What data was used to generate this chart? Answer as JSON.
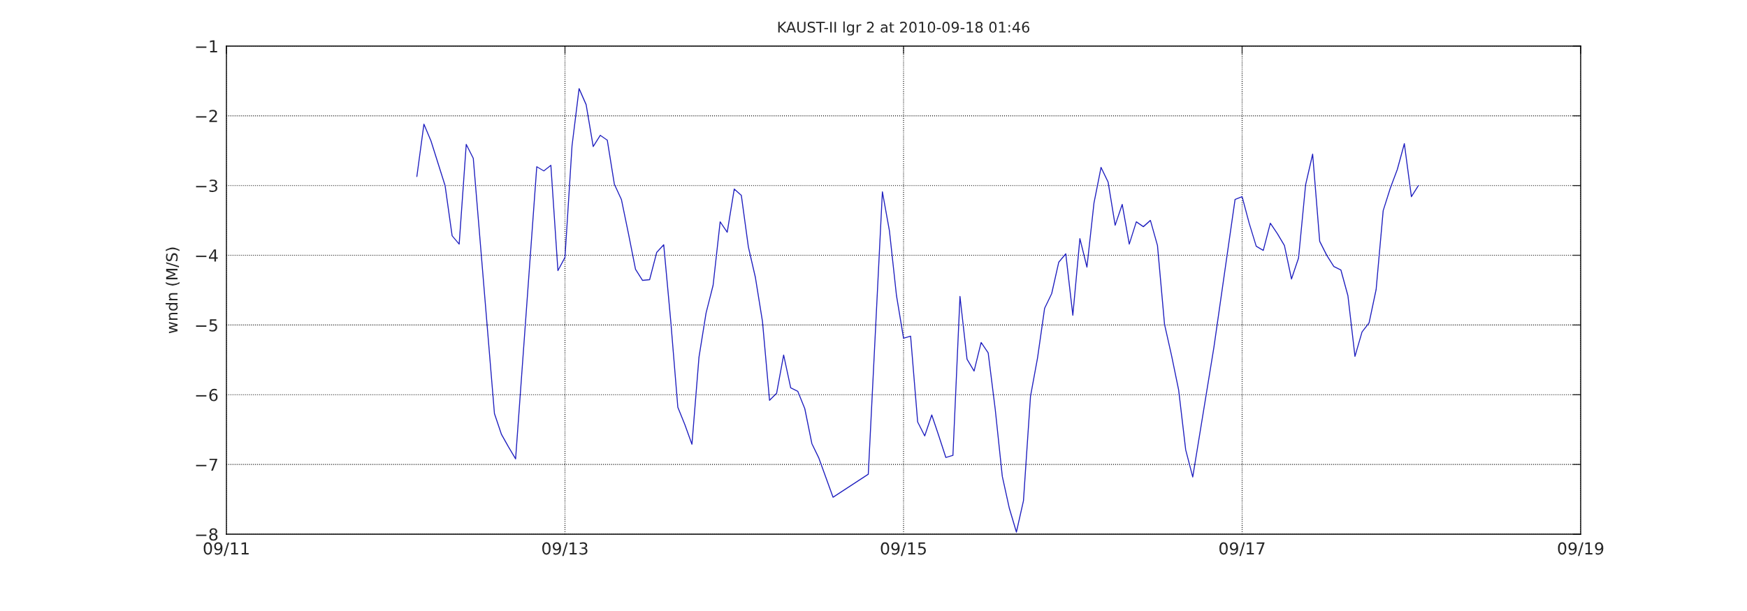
{
  "chart_data": {
    "type": "line",
    "title": "KAUST-II lgr 2 at 2010-09-18 01:46",
    "ylabel": "wndn (M/S)",
    "x": [
      "2010-09-12T03:00",
      "2010-09-12T04:00",
      "2010-09-12T05:00",
      "2010-09-12T06:00",
      "2010-09-12T07:00",
      "2010-09-12T08:00",
      "2010-09-12T09:00",
      "2010-09-12T10:00",
      "2010-09-12T11:00",
      "2010-09-12T14:00",
      "2010-09-12T15:00",
      "2010-09-12T16:00",
      "2010-09-12T17:00",
      "2010-09-12T20:00",
      "2010-09-12T21:00",
      "2010-09-12T22:00",
      "2010-09-12T23:00",
      "2010-09-13T00:00",
      "2010-09-13T01:00",
      "2010-09-13T02:00",
      "2010-09-13T03:00",
      "2010-09-13T04:00",
      "2010-09-13T05:00",
      "2010-09-13T06:00",
      "2010-09-13T07:00",
      "2010-09-13T08:00",
      "2010-09-13T09:00",
      "2010-09-13T10:00",
      "2010-09-13T11:00",
      "2010-09-13T12:00",
      "2010-09-13T13:00",
      "2010-09-13T14:00",
      "2010-09-13T15:00",
      "2010-09-13T16:00",
      "2010-09-13T17:00",
      "2010-09-13T18:00",
      "2010-09-13T19:00",
      "2010-09-13T20:00",
      "2010-09-13T21:00",
      "2010-09-13T22:00",
      "2010-09-13T23:00",
      "2010-09-14T00:00",
      "2010-09-14T01:00",
      "2010-09-14T02:00",
      "2010-09-14T03:00",
      "2010-09-14T04:00",
      "2010-09-14T05:00",
      "2010-09-14T06:00",
      "2010-09-14T07:00",
      "2010-09-14T08:00",
      "2010-09-14T09:00",
      "2010-09-14T10:00",
      "2010-09-14T11:00",
      "2010-09-14T12:00",
      "2010-09-14T14:00",
      "2010-09-14T19:00",
      "2010-09-14T21:00",
      "2010-09-14T22:00",
      "2010-09-14T23:00",
      "2010-09-15T00:00",
      "2010-09-15T01:00",
      "2010-09-15T02:00",
      "2010-09-15T03:00",
      "2010-09-15T04:00",
      "2010-09-15T05:00",
      "2010-09-15T06:00",
      "2010-09-15T07:00",
      "2010-09-15T08:00",
      "2010-09-15T09:00",
      "2010-09-15T10:00",
      "2010-09-15T11:00",
      "2010-09-15T12:00",
      "2010-09-15T13:00",
      "2010-09-15T14:00",
      "2010-09-15T15:00",
      "2010-09-15T16:00",
      "2010-09-15T17:00",
      "2010-09-15T18:00",
      "2010-09-15T19:00",
      "2010-09-15T20:00",
      "2010-09-15T21:00",
      "2010-09-15T22:00",
      "2010-09-15T23:00",
      "2010-09-16T00:00",
      "2010-09-16T01:00",
      "2010-09-16T02:00",
      "2010-09-16T03:00",
      "2010-09-16T04:00",
      "2010-09-16T05:00",
      "2010-09-16T06:00",
      "2010-09-16T07:00",
      "2010-09-16T08:00",
      "2010-09-16T09:00",
      "2010-09-16T10:00",
      "2010-09-16T11:00",
      "2010-09-16T12:00",
      "2010-09-16T13:00",
      "2010-09-16T14:00",
      "2010-09-16T15:00",
      "2010-09-16T16:00",
      "2010-09-16T17:00",
      "2010-09-16T20:00",
      "2010-09-16T23:00",
      "2010-09-17T00:00",
      "2010-09-17T01:00",
      "2010-09-17T02:00",
      "2010-09-17T03:00",
      "2010-09-17T04:00",
      "2010-09-17T05:00",
      "2010-09-17T06:00",
      "2010-09-17T07:00",
      "2010-09-17T08:00",
      "2010-09-17T09:00",
      "2010-09-17T10:00",
      "2010-09-17T11:00",
      "2010-09-17T12:00",
      "2010-09-17T13:00",
      "2010-09-17T14:00",
      "2010-09-17T15:00",
      "2010-09-17T16:00",
      "2010-09-17T17:00",
      "2010-09-17T18:00",
      "2010-09-17T19:00",
      "2010-09-17T20:00",
      "2010-09-17T21:00",
      "2010-09-17T22:00",
      "2010-09-17T23:00",
      "2010-09-18T00:00",
      "2010-09-18T01:00"
    ],
    "series": [
      {
        "color": "#1f1fbf",
        "values": [
          -2.87,
          -2.12,
          -2.36,
          -2.68,
          -3.0,
          -3.72,
          -3.84,
          -2.41,
          -2.61,
          -6.27,
          -6.57,
          -6.75,
          -6.92,
          -2.73,
          -2.79,
          -2.71,
          -4.22,
          -4.03,
          -2.43,
          -1.61,
          -1.84,
          -2.44,
          -2.28,
          -2.35,
          -2.98,
          -3.2,
          -3.69,
          -4.2,
          -4.36,
          -4.35,
          -3.96,
          -3.85,
          -4.95,
          -6.18,
          -6.43,
          -6.71,
          -5.46,
          -4.83,
          -4.43,
          -3.52,
          -3.67,
          -3.05,
          -3.14,
          -3.88,
          -4.32,
          -4.95,
          -6.08,
          -5.98,
          -5.43,
          -5.9,
          -5.95,
          -6.2,
          -6.7,
          -6.91,
          -7.47,
          -7.14,
          -3.09,
          -3.65,
          -4.58,
          -5.19,
          -5.16,
          -6.39,
          -6.59,
          -6.29,
          -6.59,
          -6.9,
          -6.87,
          -4.59,
          -5.49,
          -5.66,
          -5.25,
          -5.4,
          -6.21,
          -7.17,
          -7.63,
          -7.97,
          -7.52,
          -6.02,
          -5.47,
          -4.76,
          -4.55,
          -4.1,
          -3.98,
          -4.86,
          -3.76,
          -4.17,
          -3.25,
          -2.74,
          -2.95,
          -3.57,
          -3.27,
          -3.84,
          -3.52,
          -3.59,
          -3.5,
          -3.86,
          -4.99,
          -5.44,
          -5.93,
          -6.79,
          -7.18,
          -5.32,
          -3.2,
          -3.16,
          -3.54,
          -3.87,
          -3.93,
          -3.54,
          -3.69,
          -3.86,
          -4.34,
          -4.04,
          -2.99,
          -2.55,
          -3.8,
          -4.0,
          -4.16,
          -4.21,
          -4.58,
          -5.45,
          -5.1,
          -4.97,
          -4.49,
          -3.36,
          -3.04,
          -2.77,
          -2.4,
          -3.16,
          -3.0
        ]
      }
    ],
    "xlim": [
      "2010-09-11",
      "2010-09-19"
    ],
    "xticks": [
      {
        "value": "2010-09-11",
        "label": "09/11"
      },
      {
        "value": "2010-09-13",
        "label": "09/13"
      },
      {
        "value": "2010-09-15",
        "label": "09/15"
      },
      {
        "value": "2010-09-17",
        "label": "09/17"
      },
      {
        "value": "2010-09-19",
        "label": "09/19"
      }
    ],
    "ylim": [
      -8,
      -1
    ],
    "yticks": [
      -8,
      -7,
      -6,
      -5,
      -4,
      -3,
      -2,
      -1
    ],
    "grid": true,
    "line_style": "solid"
  }
}
